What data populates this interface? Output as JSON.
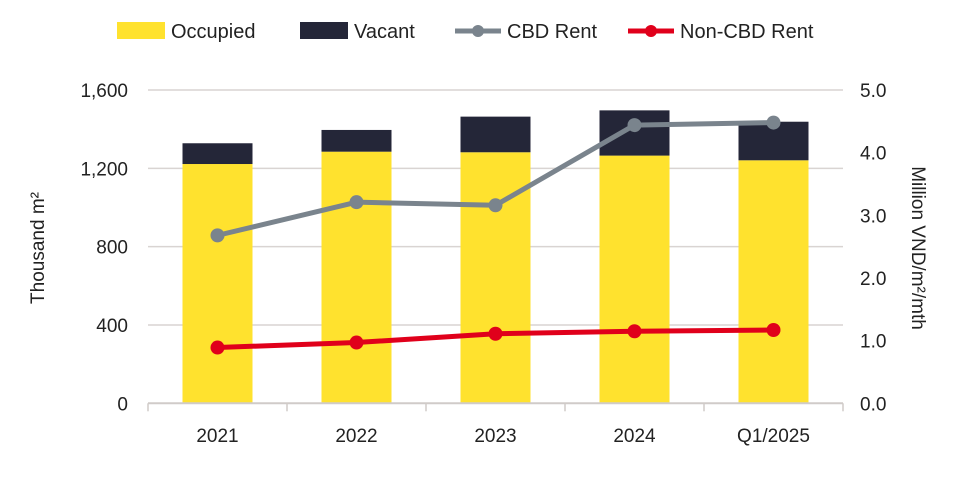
{
  "chart_data": {
    "type": "bar",
    "categories": [
      "2021",
      "2022",
      "2023",
      "2024",
      "Q1/2025"
    ],
    "series": [
      {
        "name": "Occupied",
        "kind": "stacked-bar",
        "axis": "left",
        "color": "#FFE22E",
        "values": [
          1222,
          1285,
          1282,
          1265,
          1241
        ]
      },
      {
        "name": "Vacant",
        "kind": "stacked-bar",
        "axis": "left",
        "color": "#242638",
        "values": [
          106,
          111,
          182,
          231,
          197
        ]
      },
      {
        "name": "CBD Rent",
        "kind": "line",
        "axis": "right",
        "color": "#7A848D",
        "values": [
          2.68,
          3.21,
          3.16,
          4.44,
          4.48
        ]
      },
      {
        "name": "Non-CBD Rent",
        "kind": "line",
        "axis": "right",
        "color": "#E0001B",
        "values": [
          0.89,
          0.97,
          1.11,
          1.15,
          1.17
        ]
      }
    ],
    "ylabel": "Thousand m²",
    "y2label": "Million VND/m²/mth",
    "ylim": [
      0,
      1600
    ],
    "y2lim": [
      0,
      5.0
    ],
    "yticks": [
      "0",
      "400",
      "800",
      "1,200",
      "1,600"
    ],
    "y2ticks": [
      "0.0",
      "1.0",
      "2.0",
      "3.0",
      "4.0",
      "5.0"
    ],
    "grid": true,
    "legend": "top"
  }
}
